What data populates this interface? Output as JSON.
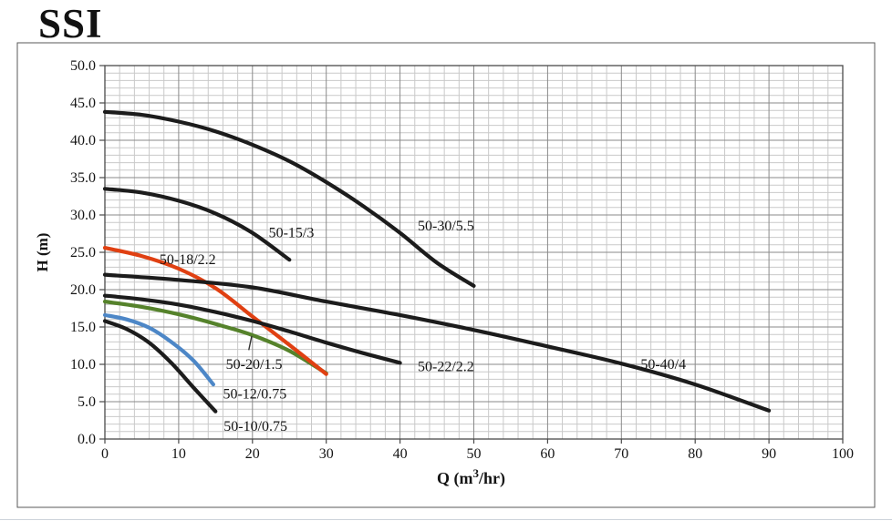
{
  "title": "SSI",
  "colors": {
    "black_curve": "#1c1c1c",
    "red_curve": "#e04012",
    "green_curve": "#55822b",
    "blue_curve": "#4d87c7",
    "grid_minor": "#c9c9c9",
    "grid_major": "#8a8a8a",
    "plot_border": "#4a4a4a",
    "frame_border": "#5a5a5a",
    "text": "#141414"
  },
  "axes": {
    "x": {
      "label_prefix": "Q (m",
      "label_superscript": "3",
      "label_suffix": "/hr)",
      "ticks": [
        "0",
        "10",
        "20",
        "30",
        "40",
        "50",
        "60",
        "70",
        "80",
        "90",
        "100"
      ],
      "min": 0,
      "max": 100,
      "major_step": 10,
      "minor_step": 2
    },
    "y": {
      "label": "H (m)",
      "ticks": [
        "0.0",
        "5.0",
        "10.0",
        "15.0",
        "20.0",
        "25.0",
        "30.0",
        "35.0",
        "40.0",
        "45.0",
        "50.0"
      ],
      "min": 0,
      "max": 50,
      "major_step": 5,
      "minor_step": 1
    }
  },
  "chart_data": {
    "type": "line",
    "title": "SSI",
    "xlabel": "Q (m3/hr)",
    "ylabel": "H (m)",
    "xlim": [
      0,
      100
    ],
    "ylim": [
      0,
      50
    ],
    "grid": "major+minor",
    "legend_position": "inline-labels",
    "series": [
      {
        "name": "50-20/1.5",
        "color": "#55822b",
        "points": [
          [
            0,
            18.4
          ],
          [
            5,
            17.7
          ],
          [
            10,
            16.7
          ],
          [
            15,
            15.4
          ],
          [
            20,
            13.9
          ],
          [
            25,
            11.8
          ],
          [
            30,
            8.8
          ]
        ],
        "label": {
          "text": "50-20/1.5",
          "q": 16.4,
          "h": 9.4
        },
        "leader": {
          "q1": 19.9,
          "h1": 13.8,
          "q2": 19.5,
          "h2": 11.9
        }
      },
      {
        "name": "50-12/0.75",
        "color": "#4d87c7",
        "points": [
          [
            0,
            16.6
          ],
          [
            3,
            16.0
          ],
          [
            6,
            14.9
          ],
          [
            9,
            13.0
          ],
          [
            12,
            10.5
          ],
          [
            14.7,
            7.3
          ]
        ],
        "label": {
          "text": "50-12/0.75",
          "q": 16.0,
          "h": 5.4
        }
      },
      {
        "name": "50-18/2.2",
        "color": "#e04012",
        "points": [
          [
            0,
            25.6
          ],
          [
            5,
            24.5
          ],
          [
            10,
            22.8
          ],
          [
            15,
            20.2
          ],
          [
            20,
            16.4
          ],
          [
            25,
            12.6
          ],
          [
            30,
            8.7
          ]
        ],
        "label": {
          "text": "50-18/2.2",
          "q": 7.4,
          "h": 23.4
        }
      },
      {
        "name": "50-30/5.5",
        "color": "#1c1c1c",
        "points": [
          [
            0,
            43.8
          ],
          [
            5,
            43.4
          ],
          [
            10,
            42.5
          ],
          [
            15,
            41.2
          ],
          [
            20,
            39.4
          ],
          [
            25,
            37.2
          ],
          [
            30,
            34.4
          ],
          [
            35,
            31.2
          ],
          [
            40,
            27.6
          ],
          [
            45,
            23.6
          ],
          [
            50,
            20.5
          ]
        ],
        "label": {
          "text": "50-30/5.5",
          "q": 42.4,
          "h": 27.9
        }
      },
      {
        "name": "50-15/3",
        "color": "#1c1c1c",
        "points": [
          [
            0,
            33.5
          ],
          [
            5,
            33.0
          ],
          [
            10,
            31.9
          ],
          [
            15,
            30.2
          ],
          [
            20,
            27.6
          ],
          [
            25,
            24.0
          ]
        ],
        "label": {
          "text": "50-15/3",
          "q": 22.2,
          "h": 27.0
        }
      },
      {
        "name": "50-40/4",
        "color": "#1c1c1c",
        "points": [
          [
            0,
            22.0
          ],
          [
            10,
            21.3
          ],
          [
            20,
            20.3
          ],
          [
            30,
            18.4
          ],
          [
            40,
            16.6
          ],
          [
            50,
            14.6
          ],
          [
            60,
            12.4
          ],
          [
            70,
            10.1
          ],
          [
            80,
            7.3
          ],
          [
            90,
            3.8
          ]
        ],
        "label": {
          "text": "50-40/4",
          "q": 72.6,
          "h": 9.4
        }
      },
      {
        "name": "50-22/2.2",
        "color": "#1c1c1c",
        "points": [
          [
            0,
            19.2
          ],
          [
            5,
            18.7
          ],
          [
            10,
            18.0
          ],
          [
            15,
            17.0
          ],
          [
            20,
            15.8
          ],
          [
            25,
            14.4
          ],
          [
            30,
            12.9
          ],
          [
            35,
            11.5
          ],
          [
            40,
            10.2
          ]
        ],
        "label": {
          "text": "50-22/2.2",
          "q": 42.4,
          "h": 9.1
        }
      },
      {
        "name": "50-10/0.75",
        "color": "#1c1c1c",
        "points": [
          [
            0,
            15.8
          ],
          [
            3,
            14.7
          ],
          [
            6,
            12.9
          ],
          [
            9,
            10.2
          ],
          [
            12,
            6.9
          ],
          [
            15,
            3.7
          ]
        ],
        "label": {
          "text": "50-10/0.75",
          "q": 16.1,
          "h": 1.1
        }
      }
    ]
  }
}
